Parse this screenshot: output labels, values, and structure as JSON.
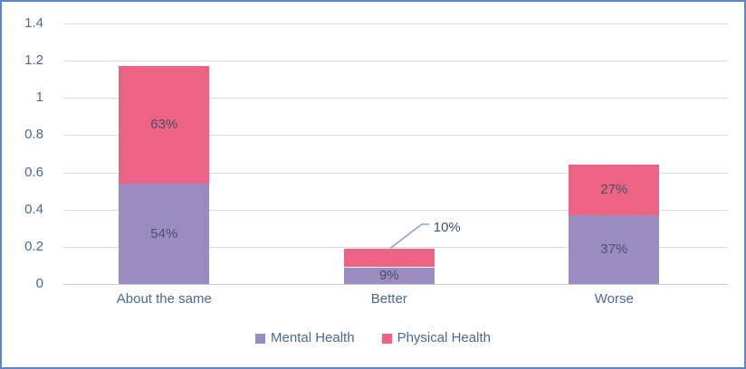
{
  "chart": {
    "background": "#FFFFFF",
    "border_color": "#5B87C8"
  },
  "chart_data": {
    "type": "bar",
    "stacked": true,
    "title": "",
    "xlabel": "",
    "ylabel": "",
    "categories": [
      "About the same",
      "Better",
      "Worse"
    ],
    "series": [
      {
        "name": "Mental Health",
        "color": "#9B8BC1",
        "values": [
          0.54,
          0.09,
          0.37
        ],
        "labels": [
          "54%",
          "9%",
          "37%"
        ]
      },
      {
        "name": "Physical Health",
        "color": "#EC6384",
        "values": [
          0.63,
          0.1,
          0.27
        ],
        "labels": [
          "63%",
          "10%",
          "27%"
        ]
      }
    ],
    "ylim": [
      0,
      1.4
    ],
    "yticks": [
      {
        "v": 1.4,
        "label": "1.4"
      },
      {
        "v": 1.2,
        "label": "1.2"
      },
      {
        "v": 1.0,
        "label": "1"
      },
      {
        "v": 0.8,
        "label": "0.8"
      },
      {
        "v": 0.6,
        "label": "0.6"
      },
      {
        "v": 0.4,
        "label": "0.4"
      },
      {
        "v": 0.2,
        "label": "0.2"
      },
      {
        "v": 0.0,
        "label": "0"
      }
    ],
    "grid": true,
    "legend_position": "bottom",
    "legend": [
      "Mental Health",
      "Physical Health"
    ],
    "callout": {
      "series": "Physical Health",
      "category": "Better",
      "label": "10%"
    },
    "colors": {
      "gridline": "#D6DCE8",
      "axis_line": "#C5CEDF",
      "tick_text": "#4A689C",
      "category_text": "#4A689C",
      "legend_text": "#4A689C",
      "data_label_text": "#44546A",
      "leader_line": "#8FA3CC"
    }
  }
}
